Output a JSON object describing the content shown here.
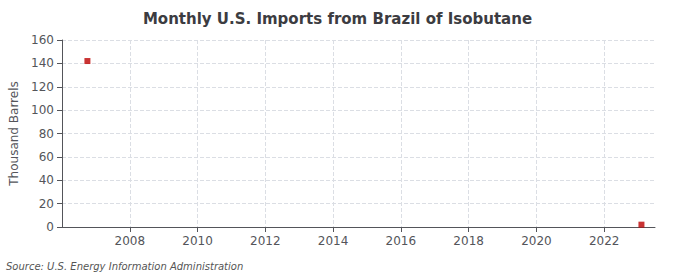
{
  "chart_data": {
    "type": "scatter",
    "title": "Monthly U.S. Imports from Brazil of Isobutane",
    "ylabel": "Thousand Barrels",
    "annotations": [
      "Source: U.S. Energy Information Administration"
    ],
    "x": [
      2006.75,
      2023.1
    ],
    "values": [
      142,
      2
    ],
    "color": "#bb0000",
    "marker": "square",
    "xlim": [
      2006.0,
      2023.5
    ],
    "ylim": [
      0,
      160
    ],
    "xticks": [
      2008,
      2010,
      2012,
      2014,
      2016,
      2018,
      2020,
      2022
    ],
    "yticks": [
      0,
      20,
      40,
      60,
      80,
      100,
      120,
      140,
      160
    ],
    "grid": true
  }
}
